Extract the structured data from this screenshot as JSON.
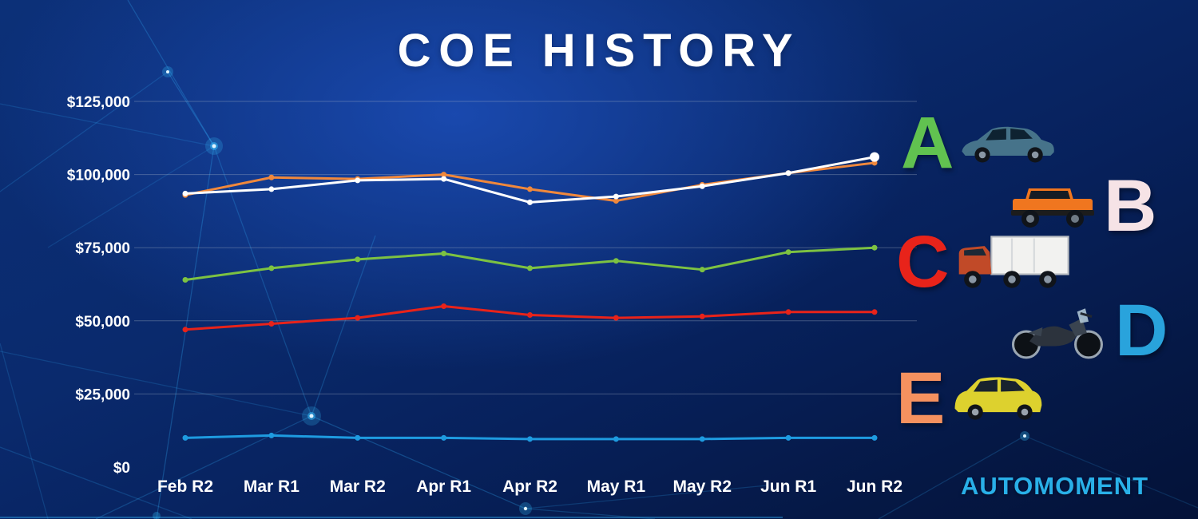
{
  "title": "COE HISTORY",
  "brand": {
    "name": "AUTOMOMENT",
    "color": "#29b0e8"
  },
  "chart_data": {
    "type": "line",
    "title": "COE HISTORY",
    "xlabel": "",
    "ylabel": "",
    "categories": [
      "Feb R2",
      "Mar R1",
      "Mar R2",
      "Apr R1",
      "Apr R2",
      "May R1",
      "May R2",
      "Jun R1",
      "Jun R2"
    ],
    "y_ticks": [
      "$0",
      "$25,000",
      "$50,000",
      "$75,000",
      "$100,000",
      "$125,000"
    ],
    "ylim": [
      0,
      125000
    ],
    "grid": true,
    "legend_position": "right",
    "series": [
      {
        "name": "E",
        "color": "#f0883c",
        "values": [
          93000,
          99000,
          98500,
          100000,
          95000,
          91000,
          96500,
          100500,
          104000
        ],
        "marker_end": false
      },
      {
        "name": "A",
        "color": "#7dc242",
        "values": [
          64000,
          68000,
          71000,
          73000,
          68000,
          70500,
          67500,
          73500,
          75000
        ],
        "marker_end": false
      },
      {
        "name": "C",
        "color": "#e8231a",
        "values": [
          47000,
          49000,
          51000,
          55000,
          52000,
          51000,
          51500,
          53000,
          53000
        ],
        "marker_end": false
      },
      {
        "name": "D",
        "color": "#1e9be0",
        "values": [
          10000,
          10800,
          10000,
          10000,
          9600,
          9600,
          9600,
          10000,
          10000
        ],
        "marker_end": false
      },
      {
        "name": "B",
        "color": "#ffffff",
        "values": [
          93500,
          95000,
          98000,
          98500,
          90500,
          92500,
          96000,
          100500,
          106000
        ],
        "marker_end": true
      }
    ]
  },
  "legend": [
    {
      "letter": "A",
      "color": "#61c250",
      "vehicle": "sedan"
    },
    {
      "letter": "B",
      "color": "#f6e3e6",
      "vehicle": "suv"
    },
    {
      "letter": "C",
      "color": "#e8231a",
      "vehicle": "truck"
    },
    {
      "letter": "D",
      "color": "#29a3dc",
      "vehicle": "motorcycle"
    },
    {
      "letter": "E",
      "color": "#f5915f",
      "vehicle": "mpv"
    }
  ]
}
